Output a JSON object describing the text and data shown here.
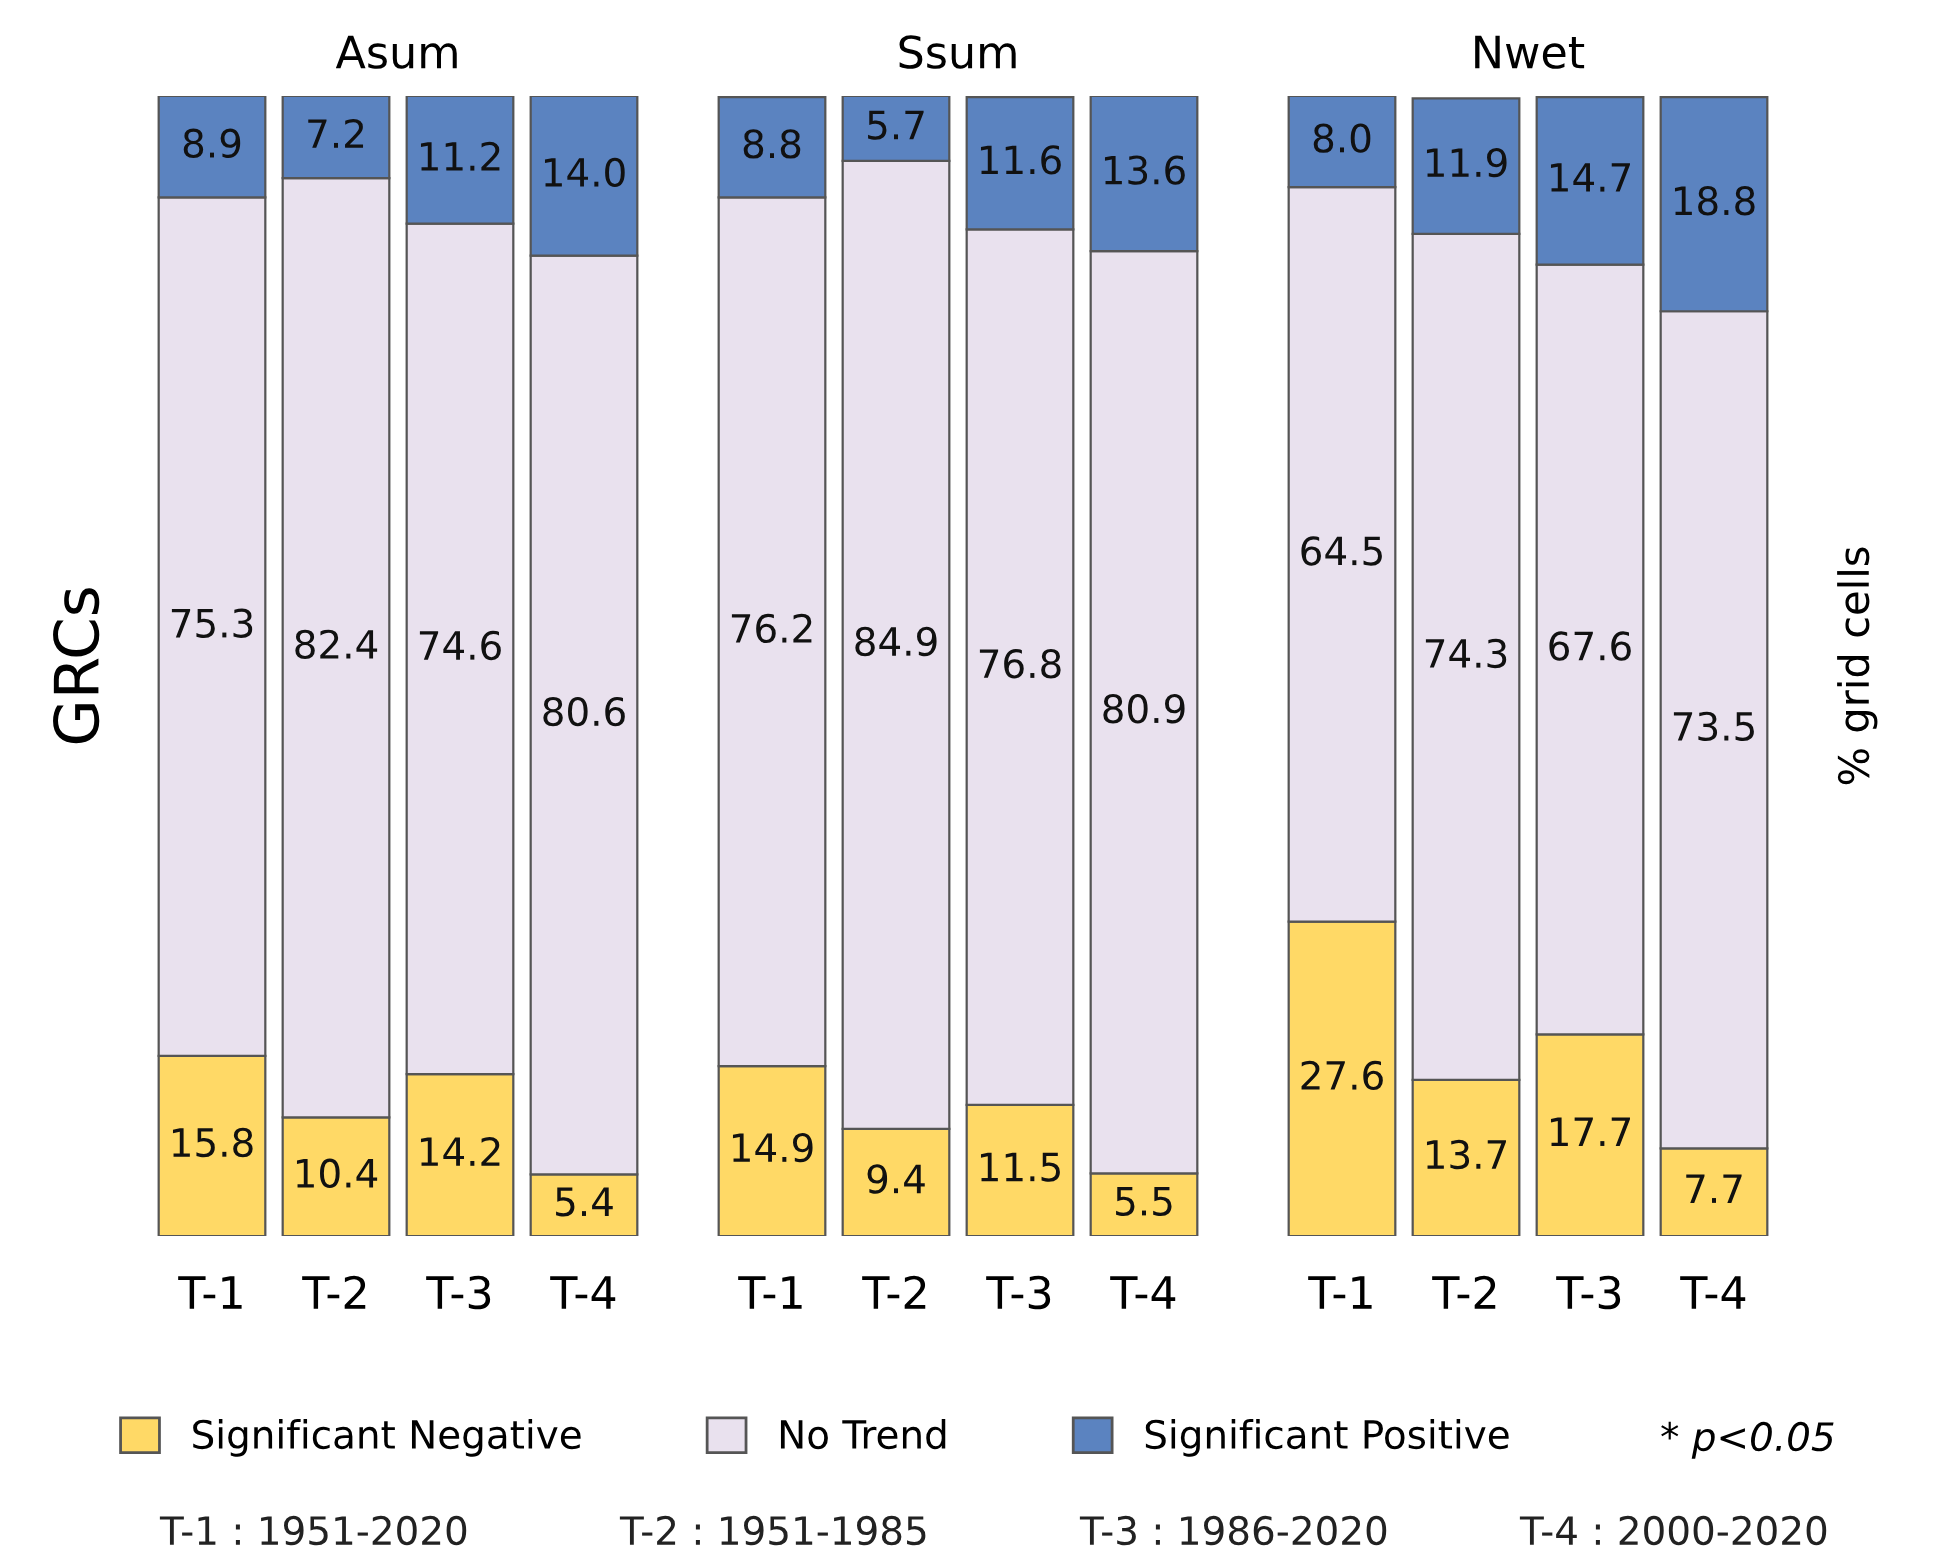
{
  "chart_data": [
    {
      "type": "bar",
      "title": "Asum",
      "ylabel": "GRCs",
      "stacked": true,
      "legend": "bottom",
      "categories": [
        "T-1",
        "T-2",
        "T-3",
        "T-4"
      ],
      "series": [
        {
          "name": "Significant Negative",
          "color": "#ffd966",
          "values": [
            15.8,
            10.4,
            14.2,
            5.4
          ],
          "value_labels": [
            "15.8",
            "10.4",
            "14.2",
            "5.4"
          ]
        },
        {
          "name": "No Trend",
          "color": "#e9e1ee",
          "values": [
            75.3,
            82.4,
            74.6,
            80.6
          ],
          "value_labels": [
            "75.3",
            "82.4",
            "74.6",
            "80.6"
          ]
        },
        {
          "name": "Significant Positive",
          "color": "#5b83c0",
          "values": [
            8.9,
            7.2,
            11.2,
            14
          ],
          "value_labels": [
            "8.9",
            "7.2",
            "11.2",
            "14.0"
          ]
        }
      ],
      "annotations": [
        "* p<0.05",
        "T-1 : 1951-2020",
        "T-2 : 1951-1985",
        "T-3 : 1986-2020",
        "T-4 : 2000-2020"
      ]
    },
    {
      "type": "bar",
      "title": "Ssum",
      "stacked": true,
      "categories": [
        "T-1",
        "T-2",
        "T-3",
        "T-4"
      ],
      "series": [
        {
          "color": "#ffd966",
          "values": [
            14.9,
            9.4,
            11.5,
            5.5
          ],
          "value_labels": [
            "14.9",
            "9.4",
            "11.5",
            "5.5"
          ]
        },
        {
          "color": "#e9e1ee",
          "values": [
            76.2,
            84.9,
            76.8,
            80.9
          ],
          "value_labels": [
            "76.2",
            "84.9",
            "76.8",
            "80.9"
          ]
        },
        {
          "color": "#5b83c0",
          "values": [
            8.8,
            5.7,
            11.6,
            13.6
          ],
          "value_labels": [
            "8.8",
            "5.7",
            "11.6",
            "13.6"
          ]
        }
      ]
    },
    {
      "type": "bar",
      "title": "Nwet",
      "y2label": "% grid cells",
      "stacked": true,
      "categories": [
        "T-1",
        "T-2",
        "T-3",
        "T-4"
      ],
      "series": [
        {
          "color": "#ffd966",
          "values": [
            27.6,
            13.7,
            17.7,
            7.7
          ],
          "value_labels": [
            "27.6",
            "13.7",
            "17.7",
            "7.7"
          ]
        },
        {
          "color": "#e9e1ee",
          "values": [
            64.5,
            74.3,
            67.6,
            73.5
          ],
          "value_labels": [
            "64.5",
            "74.3",
            "67.6",
            "73.5"
          ]
        },
        {
          "color": "#5b83c0",
          "values": [
            8,
            11.9,
            14.7,
            18.8
          ],
          "value_labels": [
            "8.0",
            "11.9",
            "14.7",
            "18.8"
          ]
        }
      ]
    }
  ]
}
